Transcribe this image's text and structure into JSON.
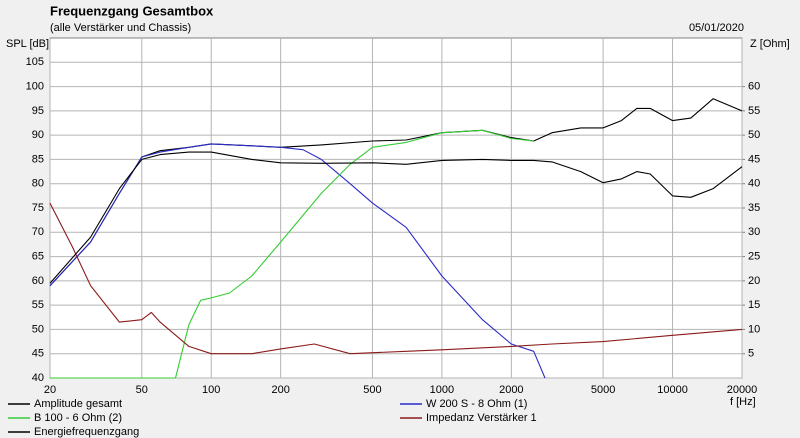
{
  "chart_data": {
    "type": "line",
    "title": "Frequenzgang Gesamtbox",
    "subtitle": "(alle Verstärker und Chassis)",
    "date": "05/01/2020",
    "y_label": "SPL [dB]",
    "y2_label": "Z [Ohm]",
    "x_label": "f [Hz]",
    "xscale": "log",
    "grid": true,
    "xlim": [
      20,
      20000
    ],
    "xticks": [
      20,
      50,
      100,
      200,
      500,
      1000,
      2000,
      5000,
      10000,
      20000
    ],
    "ylim": [
      40,
      110
    ],
    "yticks": [
      40,
      45,
      50,
      55,
      60,
      65,
      70,
      75,
      80,
      85,
      90,
      95,
      100,
      105
    ],
    "y2lim": [
      0,
      70
    ],
    "y2ticks": [
      5,
      10,
      15,
      20,
      25,
      30,
      35,
      40,
      45,
      50,
      55,
      60
    ],
    "series": [
      {
        "name": "Amplitude gesamt",
        "color": "#000000",
        "x": [
          20,
          30,
          40,
          50,
          60,
          80,
          100,
          150,
          200,
          300,
          500,
          700,
          1000,
          1500,
          2000,
          2500,
          3000,
          4000,
          5000,
          6000,
          7000,
          8000,
          10000,
          12000,
          15000,
          20000
        ],
        "values": [
          59,
          68,
          78,
          85.5,
          86.8,
          87.5,
          88.2,
          87.8,
          87.5,
          88,
          88.8,
          89,
          90.5,
          91,
          89.5,
          88.8,
          90.5,
          91.5,
          91.5,
          93,
          95.5,
          95.5,
          93,
          93.5,
          97.5,
          95
        ]
      },
      {
        "name": "W 200 S - 8 Ohm (1)",
        "color": "#2b2bc8",
        "x": [
          20,
          30,
          40,
          50,
          60,
          80,
          100,
          150,
          200,
          250,
          300,
          400,
          500,
          700,
          1000,
          1500,
          2000,
          2500,
          2800
        ],
        "values": [
          59,
          68,
          78,
          85.5,
          86.5,
          87.5,
          88.2,
          87.8,
          87.5,
          87,
          85,
          80,
          76,
          71,
          61,
          52,
          47,
          45.5,
          40
        ]
      },
      {
        "name": "B 100 - 6 Ohm (2)",
        "color": "#33cc33",
        "x": [
          20,
          70,
          80,
          90,
          100,
          120,
          150,
          200,
          300,
          400,
          500,
          700,
          1000,
          1500,
          2000,
          2500
        ],
        "values": [
          40,
          40,
          51,
          56,
          56.5,
          57.5,
          61,
          68,
          78,
          84,
          87.5,
          88.5,
          90.5,
          91,
          89.3,
          88.8
        ]
      },
      {
        "name": "Impedanz Verstärker 1",
        "color": "#8b1a1a",
        "axis": "y2",
        "x": [
          20,
          25,
          30,
          40,
          50,
          55,
          60,
          80,
          100,
          150,
          200,
          280,
          400,
          700,
          1000,
          2000,
          3000,
          5000,
          10000,
          20000
        ],
        "values": [
          36,
          27,
          19,
          11.5,
          12,
          13.5,
          11.5,
          6.5,
          5,
          5,
          6,
          7,
          5,
          5.5,
          5.8,
          6.5,
          7,
          7.5,
          8.8,
          10
        ]
      },
      {
        "name": "Energiefrequenzgang",
        "color": "#000000",
        "x": [
          20,
          30,
          40,
          50,
          60,
          80,
          100,
          150,
          200,
          300,
          500,
          700,
          1000,
          1500,
          2000,
          2500,
          3000,
          4000,
          5000,
          6000,
          7000,
          8000,
          10000,
          12000,
          15000,
          20000
        ],
        "values": [
          59.5,
          69,
          79,
          85,
          86,
          86.5,
          86.5,
          85,
          84.3,
          84.2,
          84.3,
          84,
          84.8,
          85,
          84.8,
          84.8,
          84.5,
          82.5,
          80.2,
          81,
          82.5,
          82,
          77.5,
          77.2,
          79,
          83.5
        ]
      }
    ]
  }
}
